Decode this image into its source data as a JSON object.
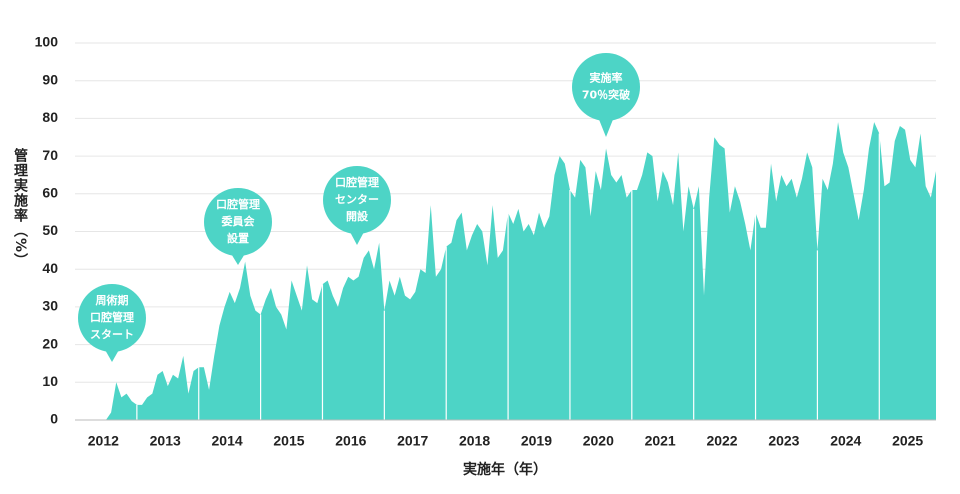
{
  "chart_data": {
    "type": "area",
    "y_axis_label": "管理実施率（%）",
    "x_axis_label": "実施年（年）",
    "categories": [
      "2012",
      "2013",
      "2014",
      "2015",
      "2016",
      "2017",
      "2018",
      "2019",
      "2020",
      "2021",
      "2022",
      "2023",
      "2024",
      "2025"
    ],
    "monthly_values": [
      0,
      0,
      0,
      0,
      0,
      0,
      0,
      2,
      10,
      6,
      7,
      5,
      4,
      4,
      6,
      7,
      12,
      13,
      9,
      12,
      11,
      17,
      7,
      13,
      14,
      14,
      8,
      17,
      25,
      30,
      34,
      31,
      35,
      42,
      33,
      29,
      28,
      32,
      35,
      30,
      28,
      24,
      37,
      33,
      29,
      41,
      32,
      31,
      36,
      37,
      33,
      30,
      35,
      38,
      37,
      38,
      43,
      45,
      40,
      47,
      29,
      37,
      33,
      38,
      33,
      32,
      34,
      40,
      39,
      57,
      38,
      40,
      46,
      47,
      53,
      55,
      45,
      49,
      52,
      50,
      41,
      57,
      43,
      45,
      55,
      52,
      56,
      50,
      52,
      49,
      55,
      51,
      54,
      65,
      70,
      68,
      61,
      59,
      69,
      67,
      54,
      66,
      61,
      72,
      65,
      63,
      65,
      59,
      61,
      61,
      65,
      71,
      70,
      58,
      66,
      63,
      57,
      71,
      50,
      62,
      56,
      62,
      33,
      59,
      75,
      73,
      72,
      55,
      62,
      58,
      52,
      45,
      55,
      51,
      51,
      68,
      58,
      65,
      62,
      64,
      59,
      64,
      71,
      67,
      45,
      64,
      61,
      68,
      79,
      71,
      67,
      60,
      53,
      61,
      72,
      79,
      76,
      62,
      63,
      74,
      78,
      77,
      69,
      67,
      76,
      62,
      59,
      66
    ],
    "color": "#4dd4c6",
    "ylim": [
      0,
      100
    ],
    "yticks": [
      0,
      10,
      20,
      30,
      40,
      50,
      60,
      70,
      80,
      90,
      100
    ],
    "grid": true,
    "annotations": [
      {
        "lines": [
          "周術期",
          "口腔管理",
          "スタート"
        ]
      },
      {
        "lines": [
          "口腔管理",
          "委員会",
          "設置"
        ]
      },
      {
        "lines": [
          "口腔管理",
          "センター",
          "開設"
        ]
      },
      {
        "lines": [
          "実施率",
          "70％突破"
        ]
      }
    ]
  }
}
